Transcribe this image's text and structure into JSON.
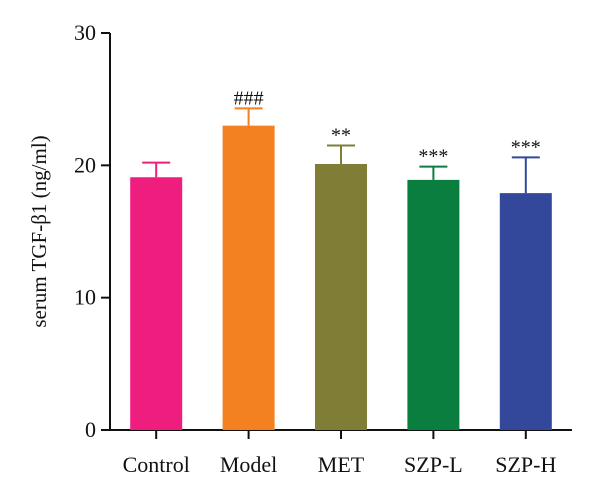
{
  "chart_data": {
    "type": "bar",
    "categories": [
      "Control",
      "Model",
      "MET",
      "SZP-L",
      "SZP-H"
    ],
    "values": [
      19.1,
      23.0,
      20.1,
      18.9,
      17.9
    ],
    "errors": [
      1.1,
      1.3,
      1.4,
      1.0,
      2.7
    ],
    "significance": [
      "",
      "###",
      "**",
      "***",
      "***"
    ],
    "colors": [
      "#EE1D7E",
      "#F4811F",
      "#7F7D36",
      "#0A7E3E",
      "#33489B"
    ],
    "ylabel": "serum TGF-β1 (ng/ml)",
    "ylim": [
      0,
      30
    ],
    "yticks": [
      0,
      10,
      20,
      30
    ],
    "grid": false
  }
}
